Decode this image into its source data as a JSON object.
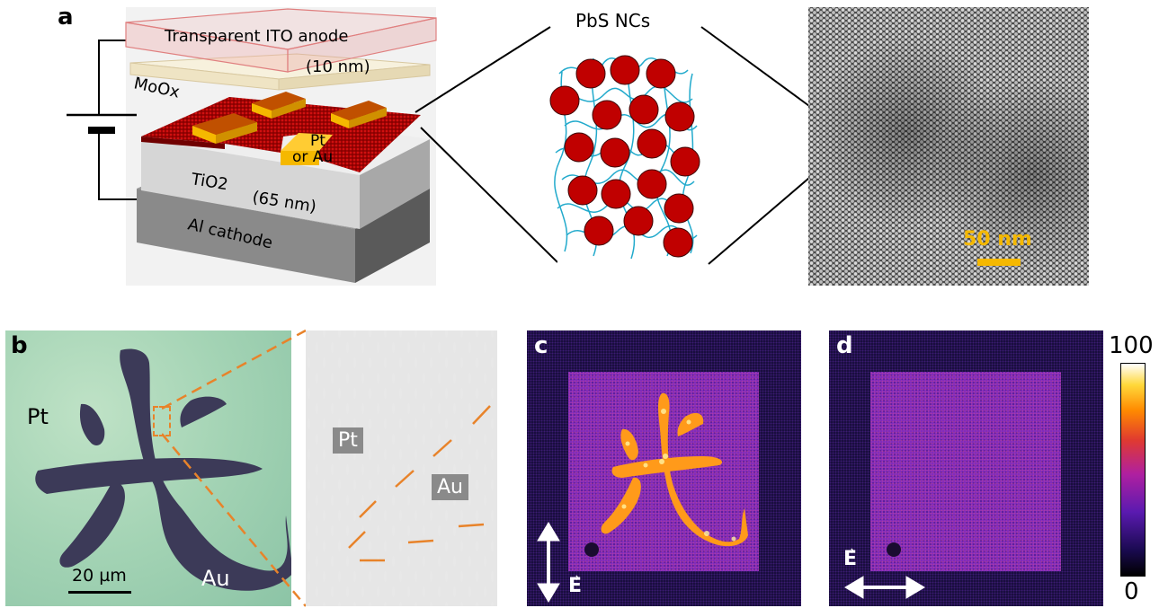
{
  "panel_a": {
    "label": "a",
    "anode_label": "Transparent ITO anode",
    "moox_label": "MoOx",
    "moox_thickness": "(10 nm)",
    "electrode_label_line1": "Pt",
    "electrode_label_line2": "or Au",
    "tio2_label": "TiO2",
    "tio2_thickness": "(65 nm)",
    "cathode_label": "Al cathode",
    "nc_label": "PbS NCs",
    "scalebar_label": "50 nm"
  },
  "panel_b": {
    "label": "b",
    "pt_label": "Pt",
    "au_label": "Au",
    "scalebar_label": "20 µm",
    "zoom_pt_label": "Pt",
    "zoom_au_label": "Au"
  },
  "panel_c": {
    "label": "c",
    "field_label": "E"
  },
  "panel_d": {
    "label": "d",
    "field_label": "E"
  },
  "colorbar": {
    "max_label": "100",
    "min_label": "0"
  },
  "colors": {
    "ito": "#e8b4b4",
    "moox": "#f3ecd6",
    "nc_red": "#c00000",
    "ligand": "#22aacc",
    "gold": "#f5b800",
    "tio2": "#dcdcdc",
    "al": "#7f7f7f",
    "accent_orange": "#e8832a"
  }
}
